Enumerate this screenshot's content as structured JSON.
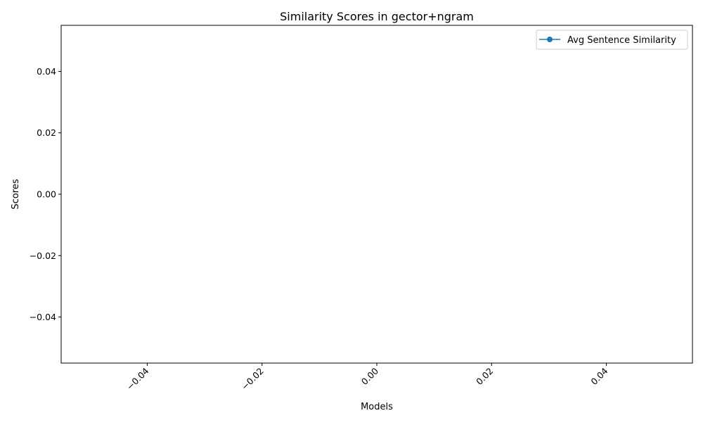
{
  "chart_data": {
    "type": "line",
    "title": "Similarity Scores in gector+ngram",
    "xlabel": "Models",
    "ylabel": "Scores",
    "xlim": [
      -0.055,
      0.055
    ],
    "ylim": [
      -0.055,
      0.055
    ],
    "x_ticks": [
      -0.04,
      -0.02,
      0.0,
      0.02,
      0.04
    ],
    "x_tick_labels": [
      "−0.04",
      "−0.02",
      "0.00",
      "0.02",
      "0.04"
    ],
    "x_tick_rotation_deg": 45,
    "y_ticks": [
      -0.04,
      -0.02,
      0.0,
      0.02,
      0.04
    ],
    "y_tick_labels": [
      "−0.04",
      "−0.02",
      "0.00",
      "0.02",
      "0.04"
    ],
    "grid": false,
    "legend_position": "top-right",
    "series": [
      {
        "name": "Avg Sentence Similarity",
        "color": "#1f77b4",
        "marker": "circle",
        "x": [],
        "y": []
      }
    ]
  }
}
